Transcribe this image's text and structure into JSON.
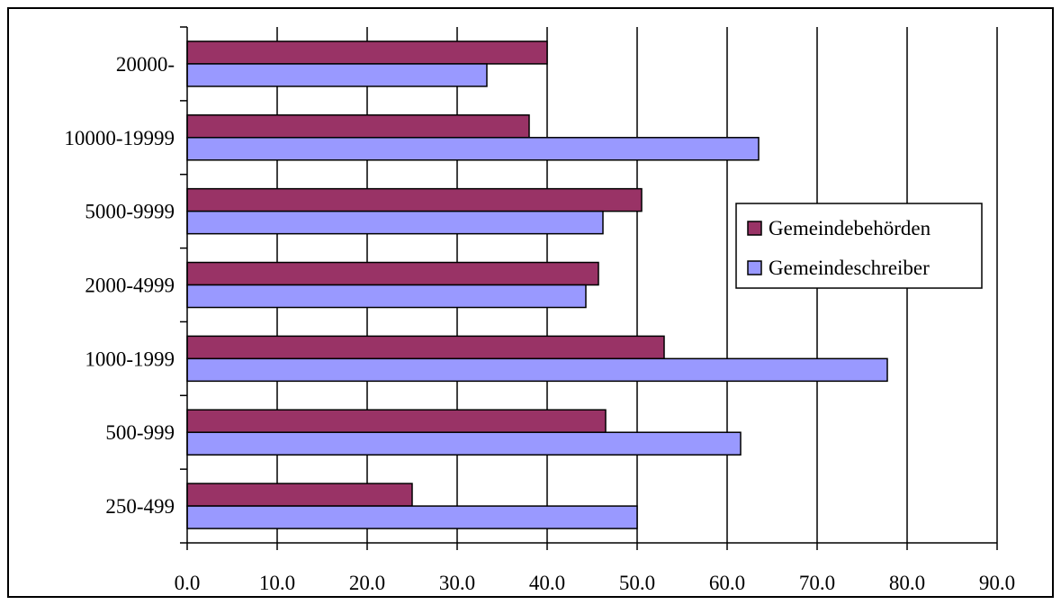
{
  "chart_data": {
    "type": "bar",
    "orientation": "horizontal",
    "title": "",
    "xlabel": "",
    "ylabel": "",
    "xlim": [
      0,
      90
    ],
    "x_ticks": [
      "0.0",
      "10.0",
      "20.0",
      "30.0",
      "40.0",
      "50.0",
      "60.0",
      "70.0",
      "80.0",
      "90.0"
    ],
    "grid": "vertical",
    "legend_position": "right",
    "categories": [
      "20000-",
      "10000-19999",
      "5000-9999",
      "2000-4999",
      "1000-1999",
      "500-999",
      "250-499"
    ],
    "series": [
      {
        "name": "Gemeindebehörden",
        "color": "#993366",
        "values": [
          40.0,
          38.0,
          50.5,
          45.7,
          53.0,
          46.5,
          25.0
        ]
      },
      {
        "name": "Gemeindeschreiber",
        "color": "#9999ff",
        "values": [
          33.3,
          63.5,
          46.2,
          44.3,
          77.8,
          61.5,
          50.0
        ]
      }
    ]
  }
}
